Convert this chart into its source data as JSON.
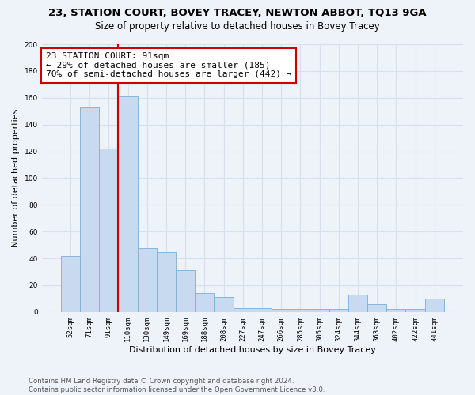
{
  "title": "23, STATION COURT, BOVEY TRACEY, NEWTON ABBOT, TQ13 9GA",
  "subtitle": "Size of property relative to detached houses in Bovey Tracey",
  "xlabel": "Distribution of detached houses by size in Bovey Tracey",
  "ylabel": "Number of detached properties",
  "footer_line1": "Contains HM Land Registry data © Crown copyright and database right 2024.",
  "footer_line2": "Contains public sector information licensed under the Open Government Licence v3.0.",
  "annotation_line1": "23 STATION COURT: 91sqm",
  "annotation_line2": "← 29% of detached houses are smaller (185)",
  "annotation_line3": "70% of semi-detached houses are larger (442) →",
  "bar_categories": [
    "52sqm",
    "71sqm",
    "91sqm",
    "110sqm",
    "130sqm",
    "149sqm",
    "169sqm",
    "188sqm",
    "208sqm",
    "227sqm",
    "247sqm",
    "266sqm",
    "285sqm",
    "305sqm",
    "324sqm",
    "344sqm",
    "363sqm",
    "402sqm",
    "422sqm",
    "441sqm"
  ],
  "bar_values": [
    42,
    153,
    122,
    161,
    48,
    45,
    31,
    14,
    11,
    3,
    3,
    2,
    2,
    2,
    2,
    13,
    6,
    2,
    2,
    10
  ],
  "property_bar_idx": 2,
  "bar_color": "#c8daef",
  "bar_edge_color": "#7bafd4",
  "highlight_line_color": "#cc0000",
  "annotation_box_color": "#cc0000",
  "background_color": "#eef2f9",
  "grid_color": "#d8e0ee",
  "ylim": [
    0,
    200
  ],
  "yticks": [
    0,
    20,
    40,
    60,
    80,
    100,
    120,
    140,
    160,
    180,
    200
  ]
}
